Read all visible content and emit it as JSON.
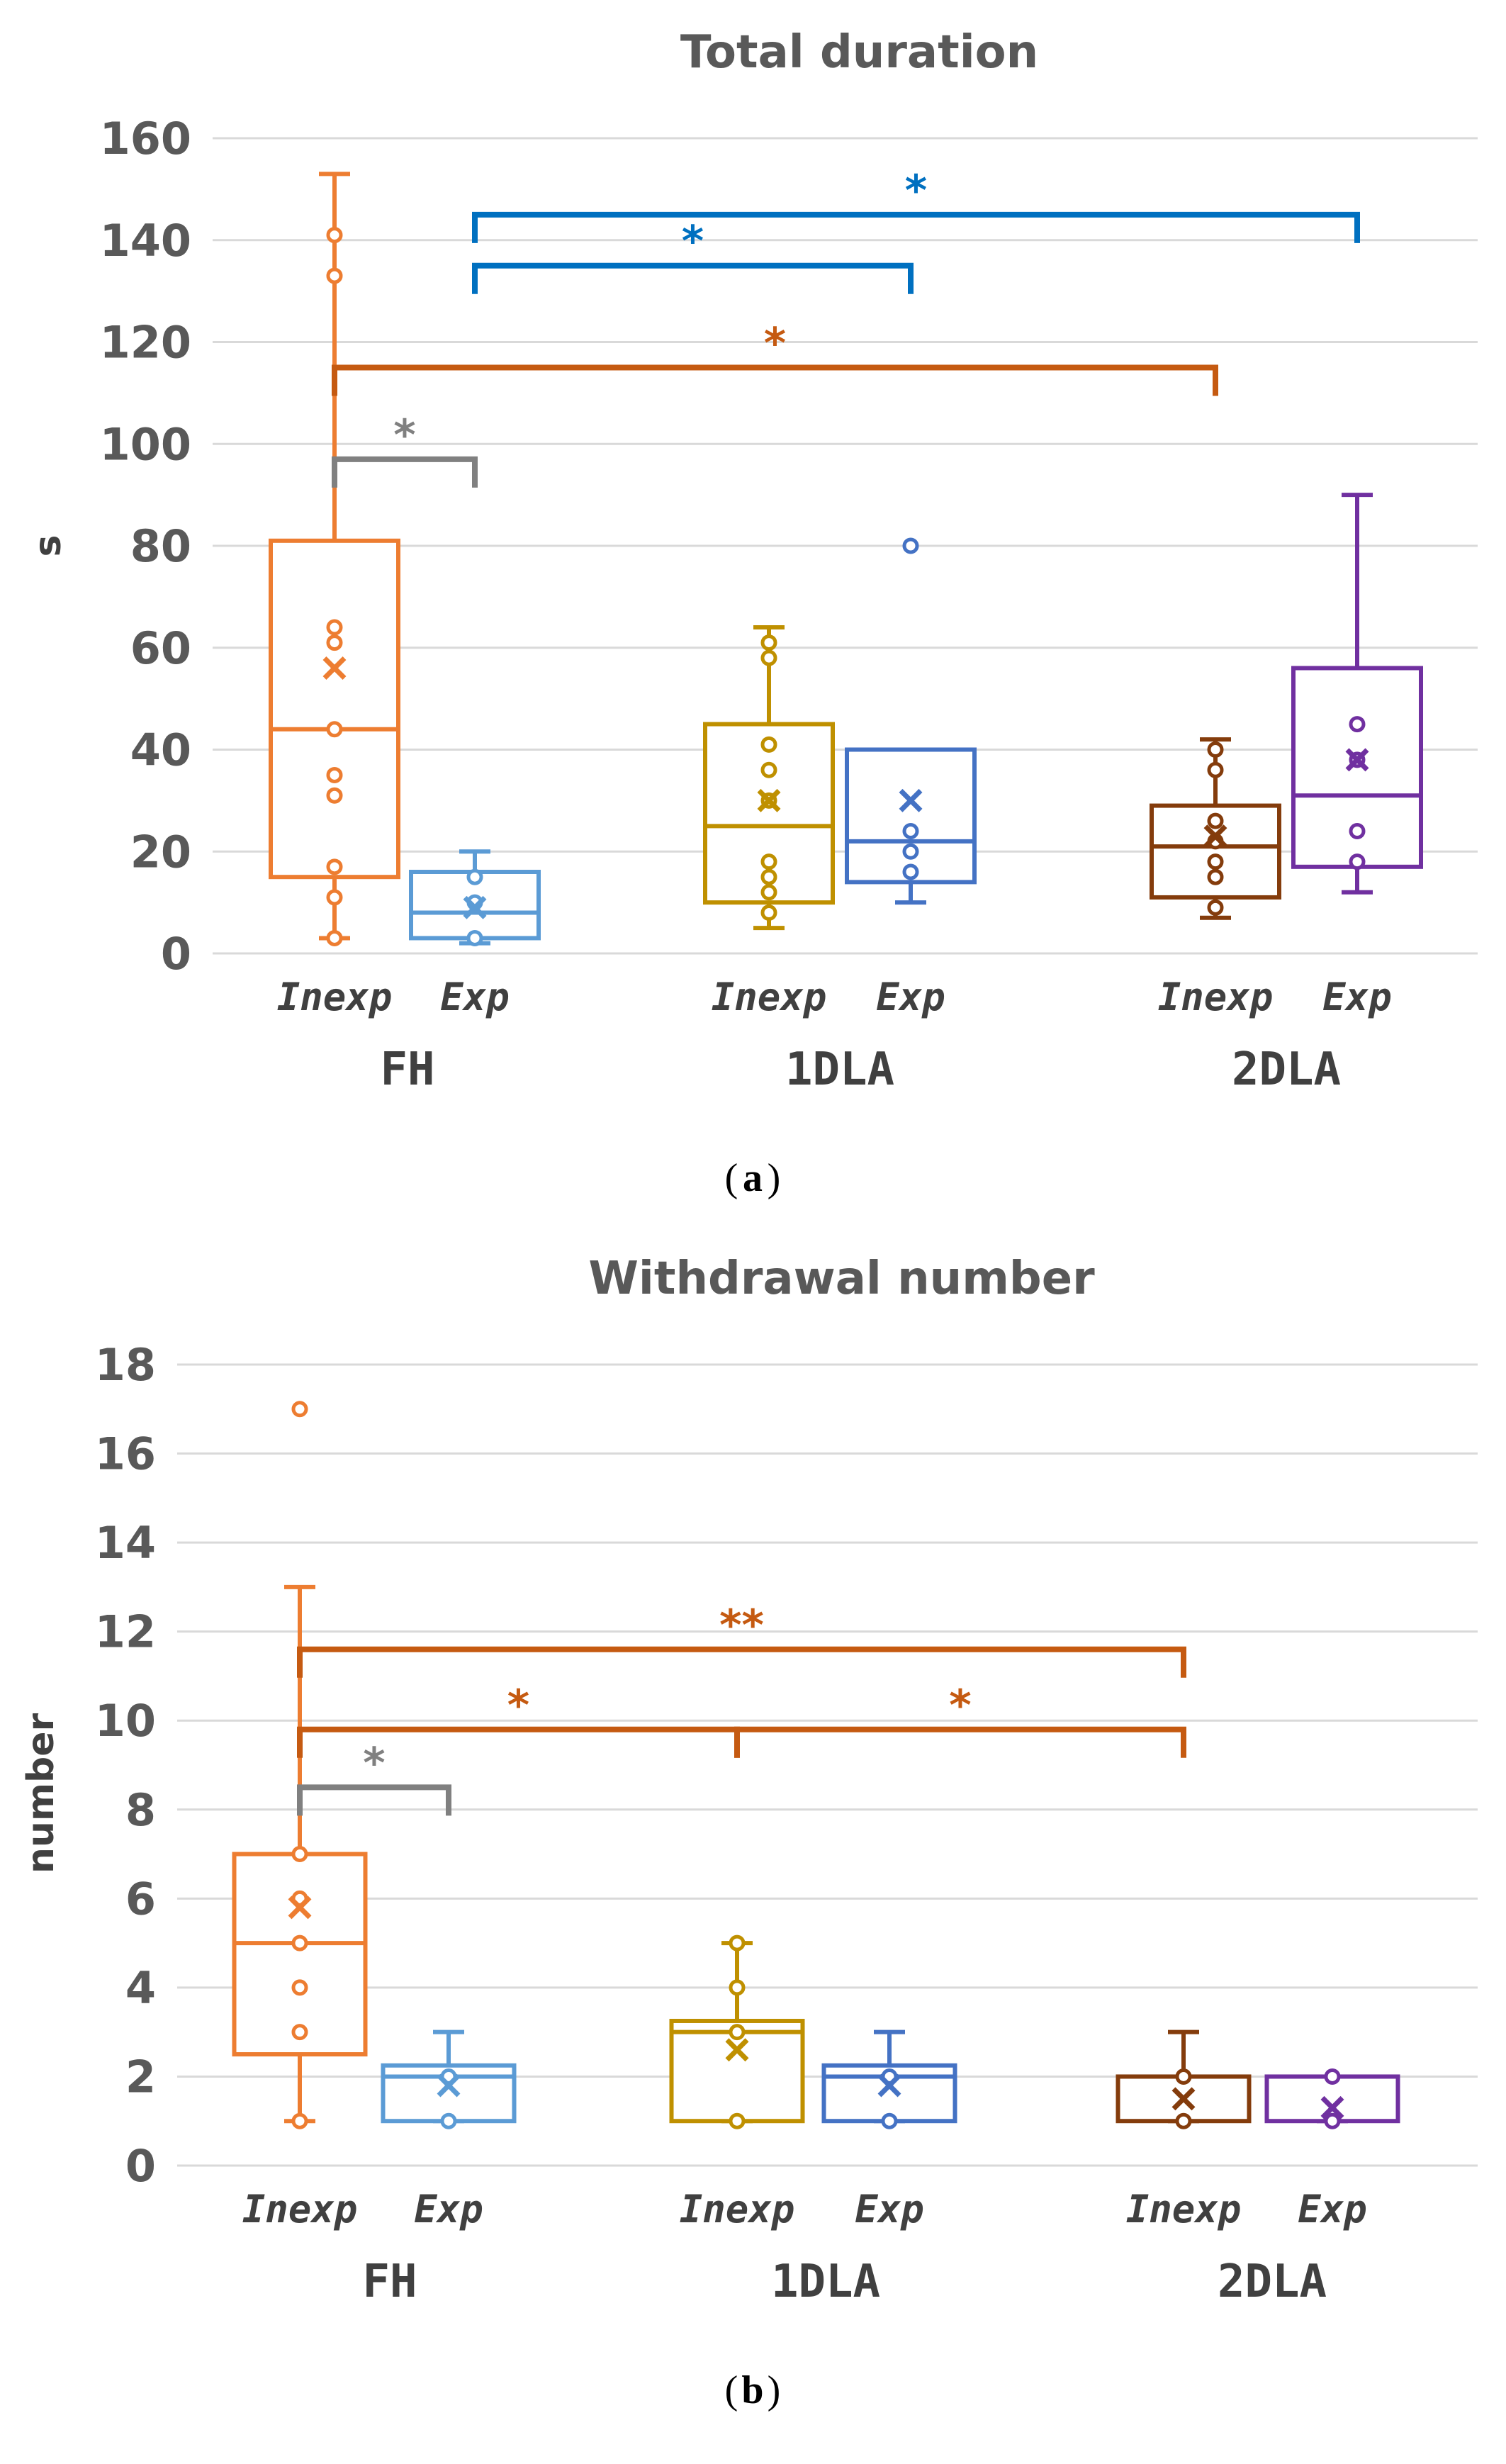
{
  "chart_data": [
    {
      "type": "box",
      "title": "Total duration",
      "ylabel": "s",
      "ylim": [
        0,
        160
      ],
      "yticks": [
        "0",
        "20",
        "40",
        "60",
        "80",
        "100",
        "120",
        "140",
        "160"
      ],
      "groups": [
        "FH",
        "1DLA",
        "2DLA"
      ],
      "subgroups": [
        "Inexp",
        "Exp"
      ],
      "caption_letter": "a",
      "series": [
        {
          "name": "FH Inexp",
          "color": "#ED7D31",
          "min": 3,
          "q1": 15,
          "median": 44,
          "q3": 81,
          "max": 153,
          "mean": 56,
          "points": [
            3,
            11,
            17,
            31,
            35,
            44,
            61,
            64,
            133,
            141
          ]
        },
        {
          "name": "FH Exp",
          "color": "#5B9BD5",
          "min": 2,
          "q1": 3,
          "median": 8,
          "q3": 16,
          "max": 20,
          "mean": 9,
          "points": [
            3,
            10,
            15
          ]
        },
        {
          "name": "1DLA Inexp",
          "color": "#BF9000",
          "min": 5,
          "q1": 10,
          "median": 25,
          "q3": 45,
          "max": 64,
          "mean": 30,
          "points": [
            8,
            12,
            15,
            18,
            30,
            36,
            41,
            58,
            61
          ]
        },
        {
          "name": "1DLA Exp",
          "color": "#4472C4",
          "min": 10,
          "q1": 14,
          "median": 22,
          "q3": 40,
          "max": 40,
          "mean": 30,
          "points": [
            16,
            20,
            24,
            80
          ]
        },
        {
          "name": "2DLA Inexp",
          "color": "#843C0C",
          "min": 7,
          "q1": 11,
          "median": 21,
          "q3": 29,
          "max": 42,
          "mean": 23,
          "points": [
            9,
            15,
            18,
            22,
            26,
            36,
            40
          ]
        },
        {
          "name": "2DLA Exp",
          "color": "#7030A0",
          "min": 12,
          "q1": 17,
          "median": 31,
          "q3": 56,
          "max": 90,
          "mean": 38,
          "points": [
            18,
            24,
            38,
            45
          ]
        }
      ],
      "significance": [
        {
          "label": "*",
          "from": "FH Inexp",
          "to": "FH Exp",
          "y": 97,
          "color": "#808080"
        },
        {
          "label": "*",
          "from": "FH Inexp",
          "to": "2DLA Inexp",
          "y": 115,
          "color": "#C55A11"
        },
        {
          "label": "*",
          "from": "FH Exp",
          "to": "1DLA Exp",
          "y": 135,
          "color": "#0070C0"
        },
        {
          "label": "*",
          "from": "FH Exp",
          "to": "2DLA Exp",
          "y": 145,
          "color": "#0070C0"
        }
      ]
    },
    {
      "type": "box",
      "title": "Withdrawal number",
      "ylabel": "number",
      "ylim": [
        0,
        18
      ],
      "yticks": [
        "0",
        "2",
        "4",
        "6",
        "8",
        "10",
        "12",
        "14",
        "16",
        "18"
      ],
      "groups": [
        "FH",
        "1DLA",
        "2DLA"
      ],
      "subgroups": [
        "Inexp",
        "Exp"
      ],
      "caption_letter": "b",
      "series": [
        {
          "name": "FH Inexp",
          "color": "#ED7D31",
          "min": 1,
          "q1": 2.5,
          "median": 5,
          "q3": 7,
          "max": 13,
          "mean": 5.8,
          "points": [
            1,
            3,
            4,
            5,
            6,
            7,
            17
          ]
        },
        {
          "name": "FH Exp",
          "color": "#5B9BD5",
          "min": 1,
          "q1": 1,
          "median": 2,
          "q3": 2.25,
          "max": 3,
          "mean": 1.8,
          "points": [
            1,
            2
          ]
        },
        {
          "name": "1DLA Inexp",
          "color": "#BF9000",
          "min": 1,
          "q1": 1,
          "median": 3,
          "q3": 3.25,
          "max": 5,
          "mean": 2.6,
          "points": [
            1,
            3,
            4,
            5
          ]
        },
        {
          "name": "1DLA Exp",
          "color": "#4472C4",
          "min": 1,
          "q1": 1,
          "median": 2,
          "q3": 2.25,
          "max": 3,
          "mean": 1.8,
          "points": [
            1,
            2
          ]
        },
        {
          "name": "2DLA Inexp",
          "color": "#843C0C",
          "min": 1,
          "q1": 1,
          "median": 2,
          "q3": 2,
          "max": 3,
          "mean": 1.5,
          "points": [
            1,
            2
          ]
        },
        {
          "name": "2DLA Exp",
          "color": "#7030A0",
          "min": 1,
          "q1": 1,
          "median": 2,
          "q3": 2,
          "max": 2,
          "mean": 1.3,
          "points": [
            1,
            2
          ]
        }
      ],
      "significance": [
        {
          "label": "*",
          "from": "FH Inexp",
          "to": "FH Exp",
          "y": 8.5,
          "color": "#808080"
        },
        {
          "label": "*",
          "from": "FH Inexp",
          "to": "1DLA Inexp",
          "y": 9.8,
          "color": "#C55A11"
        },
        {
          "label": "*",
          "from": "1DLA Inexp",
          "to": "2DLA Inexp",
          "y": 9.8,
          "color": "#C55A11"
        },
        {
          "label": "**",
          "from": "FH Inexp",
          "to": "2DLA Inexp",
          "y": 11.6,
          "color": "#C55A11"
        }
      ]
    }
  ]
}
